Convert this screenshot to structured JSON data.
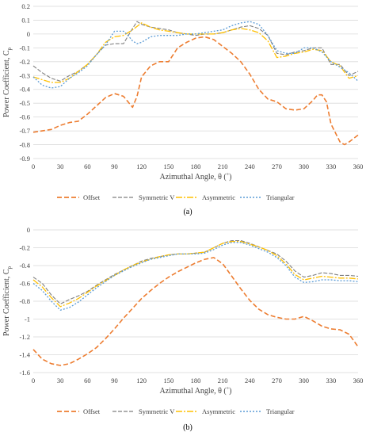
{
  "chart_data": [
    {
      "type": "line",
      "caption": "(a)",
      "xlabel": "Azimuthal Angle, θ (˚)",
      "ylabel": "Power Coefficient, C",
      "ylabel_sub": "p",
      "xlim": [
        0,
        360
      ],
      "ylim": [
        -0.9,
        0.2
      ],
      "xticks": [
        0,
        30,
        60,
        90,
        120,
        150,
        180,
        210,
        240,
        270,
        300,
        330,
        360
      ],
      "yticks": [
        0.2,
        0.1,
        0,
        -0.1,
        -0.2,
        -0.3,
        -0.4,
        -0.5,
        -0.6,
        -0.7,
        -0.8,
        -0.9
      ],
      "grid": true,
      "legend_position": "bottom",
      "series": [
        {
          "name": "Offset",
          "color": "#ED7D31",
          "dash": "6,3",
          "width": 1.6,
          "x": [
            0,
            10,
            20,
            30,
            40,
            50,
            60,
            70,
            80,
            90,
            100,
            105,
            110,
            115,
            120,
            130,
            140,
            150,
            160,
            170,
            180,
            190,
            200,
            210,
            220,
            230,
            240,
            250,
            260,
            270,
            280,
            290,
            300,
            310,
            315,
            320,
            325,
            330,
            340,
            345,
            350,
            360
          ],
          "y": [
            -0.71,
            -0.7,
            -0.69,
            -0.66,
            -0.64,
            -0.63,
            -0.58,
            -0.52,
            -0.46,
            -0.43,
            -0.45,
            -0.49,
            -0.53,
            -0.45,
            -0.31,
            -0.23,
            -0.2,
            -0.2,
            -0.1,
            -0.06,
            -0.03,
            -0.02,
            -0.04,
            -0.09,
            -0.14,
            -0.2,
            -0.29,
            -0.4,
            -0.47,
            -0.49,
            -0.54,
            -0.55,
            -0.54,
            -0.48,
            -0.44,
            -0.44,
            -0.49,
            -0.65,
            -0.78,
            -0.8,
            -0.78,
            -0.73
          ]
        },
        {
          "name": "Symmetric V",
          "color": "#7F7F7F",
          "dash": "5,2",
          "width": 1.1,
          "x": [
            0,
            10,
            20,
            30,
            40,
            50,
            60,
            70,
            80,
            90,
            100,
            110,
            115,
            120,
            130,
            140,
            150,
            160,
            170,
            180,
            190,
            200,
            210,
            220,
            230,
            240,
            250,
            260,
            270,
            280,
            290,
            300,
            310,
            320,
            330,
            340,
            350,
            360
          ],
          "y": [
            -0.23,
            -0.28,
            -0.32,
            -0.34,
            -0.3,
            -0.27,
            -0.22,
            -0.15,
            -0.08,
            -0.07,
            -0.07,
            0.04,
            0.09,
            0.07,
            0.05,
            0.04,
            0.03,
            0.01,
            0.0,
            -0.01,
            0.0,
            0.0,
            0.01,
            0.03,
            0.05,
            0.06,
            0.04,
            -0.01,
            -0.14,
            -0.15,
            -0.13,
            -0.12,
            -0.1,
            -0.1,
            -0.22,
            -0.22,
            -0.3,
            -0.27
          ]
        },
        {
          "name": "Asymmetric",
          "color": "#FFC000",
          "dash": "8,2,2,2",
          "width": 1.3,
          "x": [
            0,
            10,
            20,
            30,
            40,
            50,
            60,
            70,
            80,
            90,
            100,
            110,
            120,
            130,
            140,
            150,
            160,
            170,
            180,
            190,
            200,
            210,
            220,
            230,
            240,
            250,
            260,
            270,
            280,
            290,
            300,
            310,
            320,
            330,
            340,
            350,
            360
          ],
          "y": [
            -0.31,
            -0.33,
            -0.35,
            -0.35,
            -0.32,
            -0.27,
            -0.22,
            -0.15,
            -0.06,
            -0.02,
            -0.01,
            0.03,
            0.08,
            0.05,
            0.03,
            0.02,
            0.01,
            0.0,
            0.0,
            0.0,
            0.0,
            0.01,
            0.03,
            0.04,
            0.03,
            0.01,
            -0.05,
            -0.17,
            -0.16,
            -0.14,
            -0.13,
            -0.11,
            -0.12,
            -0.2,
            -0.23,
            -0.32,
            -0.3
          ]
        },
        {
          "name": "Triangular",
          "color": "#5B9BD5",
          "dash": "2,2",
          "width": 1.3,
          "x": [
            0,
            10,
            20,
            30,
            40,
            50,
            60,
            70,
            80,
            90,
            100,
            105,
            110,
            115,
            120,
            130,
            140,
            150,
            160,
            170,
            180,
            190,
            200,
            210,
            220,
            230,
            240,
            250,
            260,
            270,
            280,
            290,
            300,
            310,
            320,
            330,
            340,
            350,
            360
          ],
          "y": [
            -0.31,
            -0.37,
            -0.39,
            -0.38,
            -0.32,
            -0.28,
            -0.23,
            -0.15,
            -0.08,
            0.02,
            0.02,
            -0.01,
            -0.05,
            -0.07,
            -0.06,
            -0.02,
            -0.01,
            -0.01,
            -0.01,
            0.0,
            0.0,
            0.01,
            0.02,
            0.03,
            0.06,
            0.08,
            0.09,
            0.07,
            -0.01,
            -0.12,
            -0.14,
            -0.14,
            -0.1,
            -0.1,
            -0.13,
            -0.2,
            -0.24,
            -0.28,
            -0.34
          ]
        }
      ]
    },
    {
      "type": "line",
      "caption": "(b)",
      "xlabel": "Azimuthal Angle, θ (˚)",
      "ylabel": "Power Coefficient, C",
      "ylabel_sub": "p",
      "xlim": [
        0,
        360
      ],
      "ylim": [
        -1.6,
        0
      ],
      "xticks": [
        0,
        30,
        60,
        90,
        120,
        150,
        180,
        210,
        240,
        270,
        300,
        330,
        360
      ],
      "yticks": [
        0,
        -0.2,
        -0.4,
        -0.6,
        -0.8,
        -1,
        -1.2,
        -1.4,
        -1.6
      ],
      "grid": true,
      "legend_position": "bottom",
      "series": [
        {
          "name": "Offset",
          "color": "#ED7D31",
          "dash": "6,3",
          "width": 1.6,
          "x": [
            0,
            10,
            20,
            30,
            40,
            50,
            60,
            70,
            80,
            90,
            100,
            110,
            120,
            130,
            140,
            150,
            160,
            170,
            180,
            190,
            200,
            210,
            220,
            230,
            240,
            250,
            260,
            270,
            280,
            290,
            300,
            310,
            320,
            330,
            340,
            350,
            360
          ],
          "y": [
            -1.34,
            -1.45,
            -1.5,
            -1.52,
            -1.5,
            -1.45,
            -1.39,
            -1.32,
            -1.22,
            -1.11,
            -0.99,
            -0.88,
            -0.77,
            -0.68,
            -0.6,
            -0.53,
            -0.47,
            -0.42,
            -0.37,
            -0.33,
            -0.31,
            -0.38,
            -0.52,
            -0.66,
            -0.79,
            -0.89,
            -0.95,
            -0.98,
            -1.0,
            -1.0,
            -0.97,
            -1.02,
            -1.08,
            -1.11,
            -1.12,
            -1.17,
            -1.31
          ]
        },
        {
          "name": "Symmetric V",
          "color": "#7F7F7F",
          "dash": "5,2",
          "width": 1.1,
          "x": [
            0,
            10,
            20,
            30,
            40,
            50,
            60,
            70,
            80,
            90,
            100,
            110,
            120,
            130,
            140,
            150,
            160,
            170,
            180,
            190,
            200,
            210,
            220,
            230,
            240,
            250,
            260,
            270,
            280,
            290,
            300,
            310,
            320,
            330,
            340,
            350,
            360
          ],
          "y": [
            -0.53,
            -0.6,
            -0.73,
            -0.83,
            -0.78,
            -0.74,
            -0.69,
            -0.62,
            -0.56,
            -0.5,
            -0.45,
            -0.4,
            -0.35,
            -0.32,
            -0.3,
            -0.28,
            -0.27,
            -0.27,
            -0.26,
            -0.25,
            -0.2,
            -0.15,
            -0.12,
            -0.12,
            -0.15,
            -0.19,
            -0.23,
            -0.27,
            -0.35,
            -0.46,
            -0.53,
            -0.51,
            -0.48,
            -0.49,
            -0.51,
            -0.51,
            -0.52
          ]
        },
        {
          "name": "Asymmetric",
          "color": "#FFC000",
          "dash": "8,2,2,2",
          "width": 1.3,
          "x": [
            0,
            10,
            20,
            30,
            40,
            50,
            60,
            70,
            80,
            90,
            100,
            110,
            120,
            130,
            140,
            150,
            160,
            170,
            180,
            190,
            200,
            210,
            220,
            230,
            240,
            250,
            260,
            270,
            280,
            290,
            300,
            310,
            320,
            330,
            340,
            350,
            360
          ],
          "y": [
            -0.56,
            -0.64,
            -0.76,
            -0.86,
            -0.82,
            -0.77,
            -0.7,
            -0.63,
            -0.57,
            -0.51,
            -0.45,
            -0.4,
            -0.36,
            -0.33,
            -0.3,
            -0.28,
            -0.27,
            -0.27,
            -0.26,
            -0.25,
            -0.2,
            -0.15,
            -0.13,
            -0.13,
            -0.16,
            -0.19,
            -0.23,
            -0.29,
            -0.38,
            -0.5,
            -0.56,
            -0.54,
            -0.52,
            -0.53,
            -0.54,
            -0.54,
            -0.55
          ]
        },
        {
          "name": "Triangular",
          "color": "#5B9BD5",
          "dash": "2,2",
          "width": 1.3,
          "x": [
            0,
            10,
            20,
            30,
            40,
            50,
            60,
            70,
            80,
            90,
            100,
            110,
            120,
            130,
            140,
            150,
            160,
            170,
            180,
            190,
            200,
            210,
            220,
            230,
            240,
            250,
            260,
            270,
            280,
            290,
            300,
            310,
            320,
            330,
            340,
            350,
            360
          ],
          "y": [
            -0.6,
            -0.68,
            -0.8,
            -0.9,
            -0.87,
            -0.81,
            -0.73,
            -0.65,
            -0.58,
            -0.51,
            -0.46,
            -0.41,
            -0.37,
            -0.33,
            -0.31,
            -0.29,
            -0.27,
            -0.27,
            -0.27,
            -0.26,
            -0.22,
            -0.17,
            -0.14,
            -0.14,
            -0.17,
            -0.21,
            -0.25,
            -0.31,
            -0.4,
            -0.53,
            -0.59,
            -0.58,
            -0.56,
            -0.56,
            -0.57,
            -0.57,
            -0.58
          ]
        }
      ]
    }
  ]
}
